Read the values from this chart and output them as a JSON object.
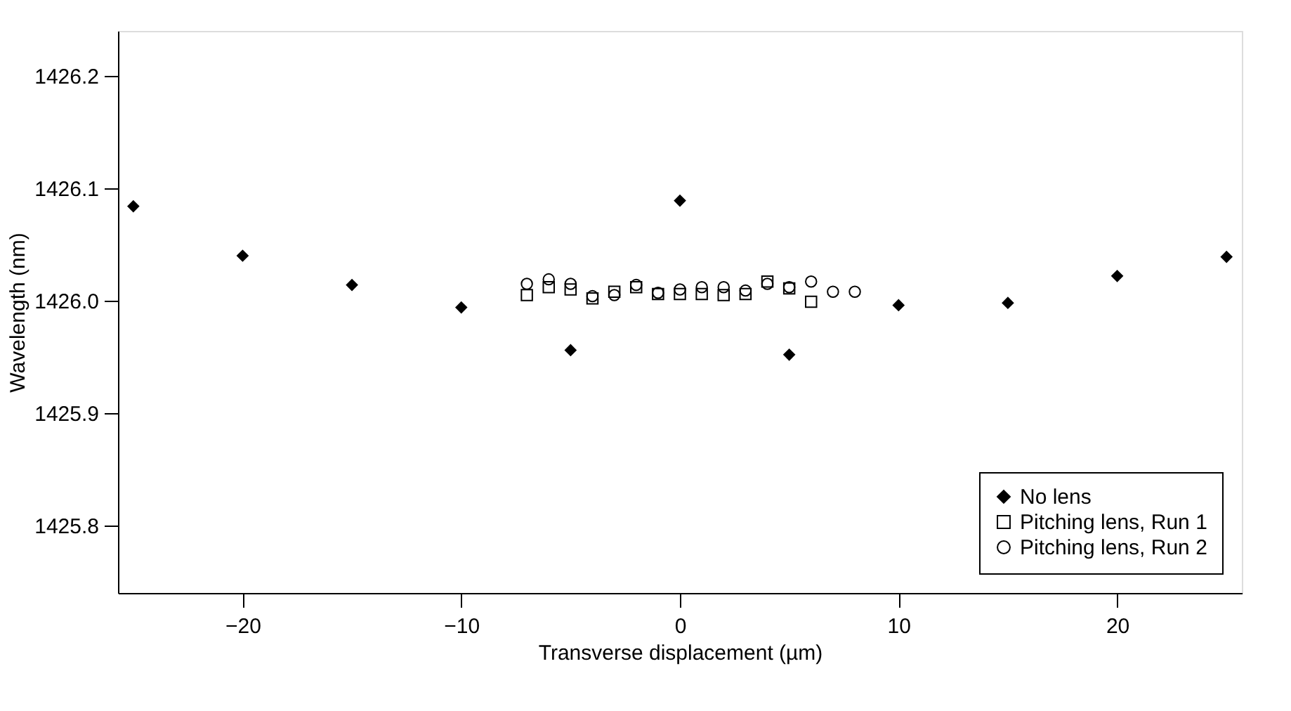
{
  "chart_data": {
    "type": "scatter",
    "xlabel": "Transverse displacement (µm)",
    "ylabel": "Wavelength (nm)",
    "xlim": [
      -25.7,
      25.7
    ],
    "xticks": [
      -20,
      -10,
      0,
      10,
      20
    ],
    "ylim": [
      1425.74,
      1426.24
    ],
    "yticks": [
      1425.8,
      1425.9,
      {
        "value": 1426.0,
        "label": "1426.0"
      },
      1426.1,
      1426.2
    ],
    "grid": false,
    "legend": "bottom right",
    "series": [
      {
        "name": "No lens",
        "color": "#000000",
        "marker": "diamond",
        "x": [
          -25,
          -20,
          -15,
          -10,
          -5,
          0,
          5,
          10,
          15,
          20,
          25
        ],
        "values": [
          1426.084,
          1426.04,
          1426.014,
          1425.994,
          1425.956,
          1426.089,
          1425.952,
          1425.996,
          1425.998,
          1426.022,
          1426.039
        ]
      },
      {
        "name": "Pitching lens, Run 1",
        "color": "#000000",
        "marker": "square",
        "x": [
          -7,
          -6,
          -5,
          -4,
          -3,
          -2,
          -1,
          0,
          1,
          2,
          3,
          4,
          5,
          6
        ],
        "values": [
          1426.005,
          1426.012,
          1426.01,
          1426.002,
          1426.008,
          1426.012,
          1426.006,
          1426.006,
          1426.006,
          1426.005,
          1426.006,
          1426.017,
          1426.011,
          1425.999
        ]
      },
      {
        "name": "Pitching lens, Run 2",
        "color": "#000000",
        "marker": "circle",
        "x": [
          -7,
          -6,
          -5,
          -4,
          -3,
          -2,
          -1,
          0,
          1,
          2,
          3,
          4,
          5,
          6,
          7,
          8
        ],
        "values": [
          1426.015,
          1426.019,
          1426.015,
          1426.004,
          1426.005,
          1426.014,
          1426.007,
          1426.01,
          1426.012,
          1426.012,
          1426.009,
          1426.015,
          1426.012,
          1426.017,
          1426.008,
          1426.008
        ]
      }
    ]
  }
}
